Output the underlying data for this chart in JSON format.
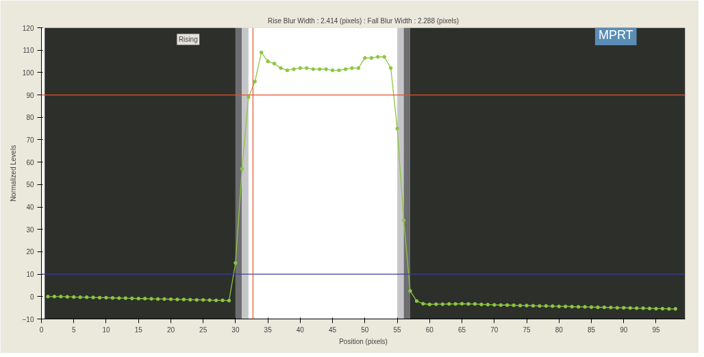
{
  "chart_data": {
    "type": "line",
    "title": "Rise Blur Width : 2.414 (pixels) : Fall Blur Width : 2.288 (pixels)",
    "xlabel": "Position (pixels)",
    "ylabel": "Normalized Levels",
    "annotations": [
      "Rising",
      "MPRT"
    ],
    "x": [
      1,
      2,
      3,
      4,
      5,
      6,
      7,
      8,
      9,
      10,
      11,
      12,
      13,
      14,
      15,
      16,
      17,
      18,
      19,
      20,
      21,
      22,
      23,
      24,
      25,
      26,
      27,
      28,
      29,
      30,
      31,
      32,
      33,
      34,
      35,
      36,
      37,
      38,
      39,
      40,
      41,
      42,
      43,
      44,
      45,
      46,
      47,
      48,
      49,
      50,
      51,
      52,
      53,
      54,
      55,
      56,
      57,
      58,
      59,
      60,
      61,
      62,
      63,
      64,
      65,
      66,
      67,
      68,
      69,
      70,
      71,
      72,
      73,
      74,
      75,
      76,
      77,
      78,
      79,
      80,
      81,
      82,
      83,
      84,
      85,
      86,
      87,
      88,
      89,
      90,
      91,
      92,
      93,
      94,
      95,
      96,
      97,
      98
    ],
    "series": [
      {
        "color": "#8cc63f",
        "values": [
          0,
          0,
          0,
          -0.1,
          -0.2,
          -0.3,
          -0.3,
          -0.4,
          -0.5,
          -0.5,
          -0.6,
          -0.7,
          -0.7,
          -0.8,
          -0.9,
          -0.9,
          -1,
          -1.1,
          -1.1,
          -1.2,
          -1.3,
          -1.3,
          -1.4,
          -1.5,
          -1.5,
          -1.6,
          -1.7,
          -1.7,
          -1.8,
          15,
          57,
          89,
          96,
          109,
          105,
          104,
          102,
          101,
          101.5,
          102,
          102,
          101.5,
          101.5,
          101.5,
          101,
          101,
          101.5,
          102,
          102,
          106.5,
          106.5,
          107,
          107,
          102,
          75,
          34,
          2.5,
          -2,
          -3.2,
          -3.5,
          -3.4,
          -3.4,
          -3.3,
          -3.3,
          -3.2,
          -3.3,
          -3.3,
          -3.5,
          -3.6,
          -3.7,
          -3.8,
          -3.8,
          -3.9,
          -4,
          -4,
          -4.1,
          -4.2,
          -4.2,
          -4.3,
          -4.4,
          -4.4,
          -4.5,
          -4.6,
          -4.6,
          -4.7,
          -4.8,
          -4.8,
          -4.9,
          -5,
          -5,
          -5.1,
          -5.2,
          -5.2,
          -5.3,
          -5.4,
          -5.4,
          -5.5,
          -5.5
        ]
      }
    ],
    "xlim": [
      0,
      99.5
    ],
    "ylim": [
      -10,
      120
    ],
    "xticks": [
      0,
      5,
      10,
      15,
      20,
      25,
      30,
      35,
      40,
      45,
      50,
      55,
      60,
      65,
      70,
      75,
      80,
      85,
      90,
      95
    ],
    "yticks": [
      -10,
      0,
      10,
      20,
      30,
      40,
      50,
      60,
      70,
      80,
      90,
      100,
      110,
      120
    ],
    "ref_lines": [
      {
        "axis": "y",
        "value": 90,
        "color": "#e8502a"
      },
      {
        "axis": "y",
        "value": 10,
        "color": "#3a3f9a"
      },
      {
        "axis": "x",
        "value": 32.7,
        "color": "#e8502a"
      }
    ],
    "bands": [
      {
        "axis": "x",
        "from": 0.5,
        "to": 30,
        "color": "#2c2f2a"
      },
      {
        "axis": "x",
        "from": 30,
        "to": 31,
        "color": "#6e6e70"
      },
      {
        "axis": "x",
        "from": 31,
        "to": 32,
        "color": "#c6c6ca"
      },
      {
        "axis": "x",
        "from": 55,
        "to": 56,
        "color": "#c6c6ca"
      },
      {
        "axis": "x",
        "from": 56,
        "to": 57,
        "color": "#6e6e70"
      },
      {
        "axis": "x",
        "from": 57,
        "to": 99.5,
        "color": "#2c2f2a"
      }
    ],
    "marker": "circle",
    "line_style": "solid",
    "grid": false
  }
}
